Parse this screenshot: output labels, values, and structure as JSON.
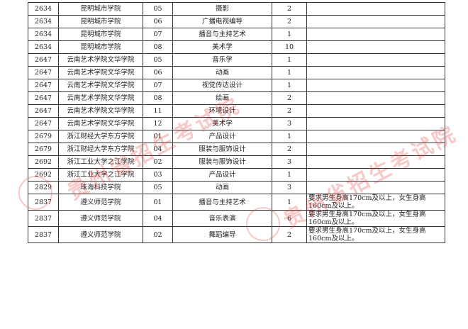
{
  "rows": [
    {
      "code": "2634",
      "school": "昆明城市学院",
      "major_code": "05",
      "major": "摄影",
      "count": "2",
      "note": ""
    },
    {
      "code": "2634",
      "school": "昆明城市学院",
      "major_code": "06",
      "major": "广播电视编导",
      "count": "2",
      "note": ""
    },
    {
      "code": "2634",
      "school": "昆明城市学院",
      "major_code": "07",
      "major": "播音与主持艺术",
      "count": "1",
      "note": ""
    },
    {
      "code": "2634",
      "school": "昆明城市学院",
      "major_code": "08",
      "major": "美术学",
      "count": "10",
      "note": ""
    },
    {
      "code": "2647",
      "school": "云南艺术学院文华学院",
      "major_code": "05",
      "major": "音乐学",
      "count": "1",
      "note": ""
    },
    {
      "code": "2647",
      "school": "云南艺术学院文华学院",
      "major_code": "06",
      "major": "动画",
      "count": "1",
      "note": ""
    },
    {
      "code": "2647",
      "school": "云南艺术学院文华学院",
      "major_code": "07",
      "major": "视觉传达设计",
      "count": "1",
      "note": ""
    },
    {
      "code": "2647",
      "school": "云南艺术学院文华学院",
      "major_code": "08",
      "major": "绘画",
      "count": "2",
      "note": ""
    },
    {
      "code": "2647",
      "school": "云南艺术学院文华学院",
      "major_code": "11",
      "major": "环境设计",
      "count": "2",
      "note": ""
    },
    {
      "code": "2647",
      "school": "云南艺术学院文华学院",
      "major_code": "12",
      "major": "美术学",
      "count": "3",
      "note": ""
    },
    {
      "code": "2679",
      "school": "浙江财经大学东方学院",
      "major_code": "01",
      "major": "产品设计",
      "count": "1",
      "note": ""
    },
    {
      "code": "2679",
      "school": "浙江财经大学东方学院",
      "major_code": "04",
      "major": "服装与服饰设计",
      "count": "2",
      "note": ""
    },
    {
      "code": "2692",
      "school": "浙江工业大学之江学院",
      "major_code": "02",
      "major": "服装与服饰设计",
      "count": "3",
      "note": ""
    },
    {
      "code": "2692",
      "school": "浙江工业大学之江学院",
      "major_code": "03",
      "major": "产品设计",
      "count": "1",
      "note": ""
    },
    {
      "code": "2829",
      "school": "珠海科技学院",
      "major_code": "05",
      "major": "动画",
      "count": "3",
      "note": ""
    },
    {
      "code": "2837",
      "school": "遵义师范学院",
      "major_code": "01",
      "major": "播音与主持艺术",
      "count": "1",
      "note": "要求男生身高170cm及以上，女生身高160cm及以上。"
    },
    {
      "code": "2837",
      "school": "遵义师范学院",
      "major_code": "04",
      "major": "音乐表演",
      "count": "6",
      "note": "要求男生身高170cm及以上，女生身高160cm及以上。"
    },
    {
      "code": "2837",
      "school": "遵义师范学院",
      "major_code": "02",
      "major": "舞蹈编导",
      "count": "2",
      "note": "要求男生身高170cm及以上，女生身高160cm及以上。"
    }
  ],
  "watermark": "贵州省招生考试院",
  "watermark_color": "#e63c3c"
}
